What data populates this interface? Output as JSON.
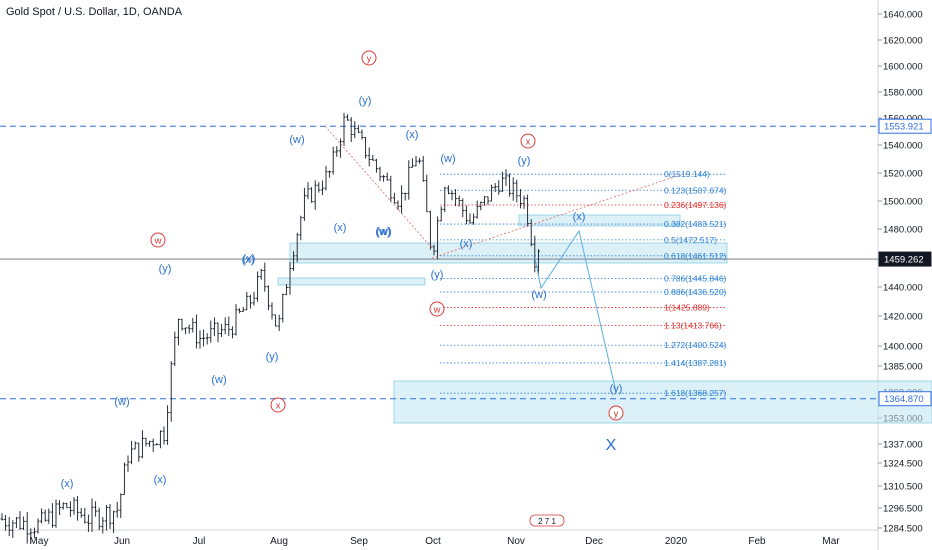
{
  "header": {
    "title": "Gold Spot / U.S. Dollar, 1D, OANDA"
  },
  "colors": {
    "candle": "#131722",
    "wave": "#2a6fcf",
    "major": "#d93a3a",
    "fib": "#2a7fd4",
    "fibAccent": "#e32b2b",
    "box": "#bfe6f0",
    "price": "#2f6fe0"
  },
  "chart_data": {
    "type": "candlestick",
    "ylim": [
      1280,
      1652
    ],
    "y_ticks": [
      "1640.000",
      "1620.000",
      "1600.000",
      "1580.000",
      "1560.000",
      "1540.000",
      "1520.000",
      "1500.000",
      "1480.000",
      "1440.000",
      "1420.000",
      "1400.000",
      "1385.000",
      "1369.000",
      "1353.000",
      "1337.000",
      "1324.500",
      "1310.500",
      "1296.500",
      "1284.500"
    ],
    "x_ticks": [
      "May",
      "Jun",
      "Jul",
      "Aug",
      "Sep",
      "Oct",
      "Nov",
      "Dec",
      "2020",
      "Feb",
      "Mar"
    ],
    "price_labels": [
      {
        "text": "1553.921",
        "value": 1553.921,
        "style": "outline"
      },
      {
        "text": "1459.262",
        "value": 1459.262,
        "style": "filled"
      },
      {
        "text": "1364.870",
        "value": 1364.87,
        "style": "outline"
      }
    ],
    "fib_levels": [
      {
        "text": "0(1519.144)",
        "value": 1519.144,
        "accent": false
      },
      {
        "text": "0.123(1507.674)",
        "value": 1507.674,
        "accent": false
      },
      {
        "text": "0.236(1497.136)",
        "value": 1497.136,
        "accent": true
      },
      {
        "text": "0.382(1483.521)",
        "value": 1483.521,
        "accent": false
      },
      {
        "text": "0.5(1472.517)",
        "value": 1472.517,
        "accent": false
      },
      {
        "text": "0.618(1461.512)",
        "value": 1461.512,
        "accent": false
      },
      {
        "text": "0.786(1445.846)",
        "value": 1445.846,
        "accent": false
      },
      {
        "text": "0.886(1436.520)",
        "value": 1436.52,
        "accent": false
      },
      {
        "text": "1(1425.889)",
        "value": 1425.889,
        "accent": true
      },
      {
        "text": "1.13(1413.766)",
        "value": 1413.766,
        "accent": true
      },
      {
        "text": "1.272(1400.524)",
        "value": 1400.524,
        "accent": false
      },
      {
        "text": "1.414(1387.281)",
        "value": 1387.281,
        "accent": false
      },
      {
        "text": "1.618(1368.257)",
        "value": 1368.257,
        "accent": false
      }
    ],
    "wave_labels": [
      "(x)",
      "(x)",
      "(w)",
      "(x)",
      "(w)",
      "(y)",
      "(y)",
      "(w)",
      "(y)",
      "(x)",
      "(w)",
      "(x)",
      "(w)",
      "(x)",
      "(y)",
      "(x)",
      "(w)",
      "(y)",
      "(w)",
      "(x)",
      "(y)"
    ],
    "major_labels": [
      "y",
      "w",
      "x",
      "x",
      "w",
      "y"
    ],
    "big_label": "X",
    "footer_badge": "2 7 1"
  }
}
